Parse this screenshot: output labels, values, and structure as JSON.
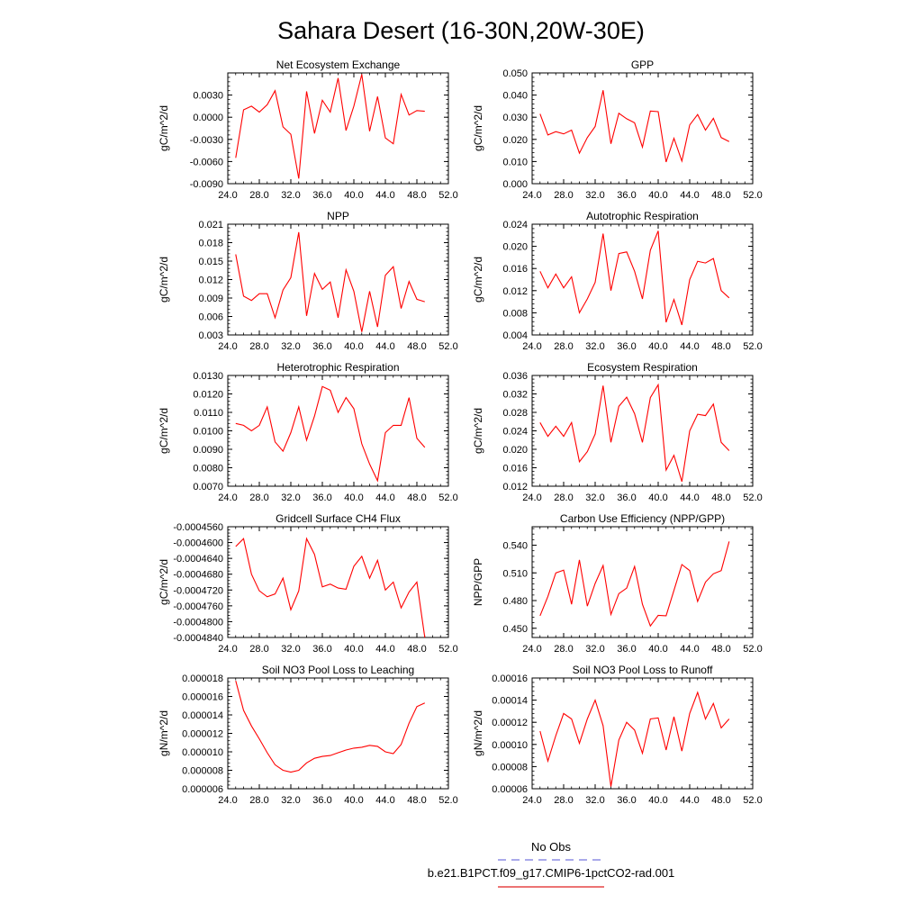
{
  "figure": {
    "title": "Sahara Desert (16-30N,20W-30E)",
    "legend": {
      "entries": [
        {
          "label": "No Obs",
          "color": "#7777dd",
          "dash": true
        },
        {
          "label": "b.e21.B1PCT.f09_g17.CMIP6-1pctCO2-rad.001",
          "color": "#e02020",
          "dash": false
        }
      ]
    }
  },
  "colors": {
    "series": "#ff0000"
  },
  "chart_data": [
    {
      "type": "line",
      "title": "Net Ecosystem Exchange",
      "ylabel": "gC/m^2/d",
      "xlim": [
        24,
        52
      ],
      "ylim": [
        -0.009,
        0.006
      ],
      "xticks": [
        "24.0",
        "28.0",
        "32.0",
        "36.0",
        "40.0",
        "44.0",
        "48.0",
        "52.0"
      ],
      "yticks": [
        "-0.0090",
        "-0.0060",
        "-0.0030",
        "0.0000",
        "0.0030"
      ],
      "yminor": 0.0006,
      "x": [
        25,
        26,
        27,
        28,
        29,
        30,
        31,
        32,
        33,
        34,
        35,
        36,
        37,
        38,
        39,
        40,
        41,
        42,
        43,
        44,
        45,
        46,
        47,
        48,
        49
      ],
      "series": [
        {
          "values": [
            -0.0055,
            0.001,
            0.0015,
            0.0007,
            0.0017,
            0.0036,
            -0.0013,
            -0.0023,
            -0.0083,
            0.0035,
            -0.0022,
            0.0023,
            0.0007,
            0.0053,
            -0.0018,
            0.0015,
            0.0058,
            -0.0019,
            0.0028,
            -0.0028,
            -0.0036,
            0.0031,
            0.0003,
            0.0009,
            0.0008
          ]
        }
      ]
    },
    {
      "type": "line",
      "title": "GPP",
      "ylabel": "gC/m^2/d",
      "xlim": [
        24,
        52
      ],
      "ylim": [
        0,
        0.05
      ],
      "xticks": [
        "24.0",
        "28.0",
        "32.0",
        "36.0",
        "40.0",
        "44.0",
        "48.0",
        "52.0"
      ],
      "yticks": [
        "0.000",
        "0.010",
        "0.020",
        "0.030",
        "0.040",
        "0.050"
      ],
      "yminor": 0.002,
      "x": [
        25,
        26,
        27,
        28,
        29,
        30,
        31,
        32,
        33,
        34,
        35,
        36,
        37,
        38,
        39,
        40,
        41,
        42,
        43,
        44,
        45,
        46,
        47,
        48,
        49
      ],
      "series": [
        {
          "values": [
            0.0315,
            0.022,
            0.0235,
            0.0225,
            0.0242,
            0.0138,
            0.0208,
            0.0258,
            0.0422,
            0.018,
            0.0318,
            0.0293,
            0.0275,
            0.0165,
            0.0328,
            0.0325,
            0.0098,
            0.0205,
            0.0102,
            0.0265,
            0.0312,
            0.0242,
            0.0295,
            0.0208,
            0.019
          ]
        }
      ]
    },
    {
      "type": "line",
      "title": "NPP",
      "ylabel": "gC/m^2/d",
      "xlim": [
        24,
        52
      ],
      "ylim": [
        0.003,
        0.021
      ],
      "xticks": [
        "24.0",
        "28.0",
        "32.0",
        "36.0",
        "40.0",
        "44.0",
        "48.0",
        "52.0"
      ],
      "yticks": [
        "0.003",
        "0.006",
        "0.009",
        "0.012",
        "0.015",
        "0.018",
        "0.021"
      ],
      "yminor": 0.0006,
      "x": [
        25,
        26,
        27,
        28,
        29,
        30,
        31,
        32,
        33,
        34,
        35,
        36,
        37,
        38,
        39,
        40,
        41,
        42,
        43,
        44,
        45,
        46,
        47,
        48,
        49
      ],
      "series": [
        {
          "values": [
            0.0161,
            0.0093,
            0.0086,
            0.0097,
            0.0097,
            0.0058,
            0.0103,
            0.0123,
            0.0197,
            0.0061,
            0.013,
            0.0104,
            0.0116,
            0.0058,
            0.0136,
            0.0101,
            0.0035,
            0.0101,
            0.0043,
            0.0127,
            0.0141,
            0.0073,
            0.0117,
            0.0088,
            0.0084
          ]
        }
      ]
    },
    {
      "type": "line",
      "title": "Autotrophic Respiration",
      "ylabel": "gC/m^2/d",
      "xlim": [
        24,
        52
      ],
      "ylim": [
        0.004,
        0.024
      ],
      "xticks": [
        "24.0",
        "28.0",
        "32.0",
        "36.0",
        "40.0",
        "44.0",
        "48.0",
        "52.0"
      ],
      "yticks": [
        "0.004",
        "0.008",
        "0.012",
        "0.016",
        "0.020",
        "0.024"
      ],
      "yminor": 0.0008,
      "x": [
        25,
        26,
        27,
        28,
        29,
        30,
        31,
        32,
        33,
        34,
        35,
        36,
        37,
        38,
        39,
        40,
        41,
        42,
        43,
        44,
        45,
        46,
        47,
        48,
        49
      ],
      "series": [
        {
          "values": [
            0.0155,
            0.0125,
            0.015,
            0.0125,
            0.0145,
            0.008,
            0.0105,
            0.0135,
            0.0223,
            0.012,
            0.0187,
            0.019,
            0.0155,
            0.0105,
            0.0193,
            0.0228,
            0.0063,
            0.0104,
            0.0058,
            0.014,
            0.0173,
            0.017,
            0.0178,
            0.012,
            0.0107
          ]
        }
      ]
    },
    {
      "type": "line",
      "title": "Heterotrophic Respiration",
      "ylabel": "gC/m^2/d",
      "xlim": [
        24,
        52
      ],
      "ylim": [
        0.007,
        0.013
      ],
      "xticks": [
        "24.0",
        "28.0",
        "32.0",
        "36.0",
        "40.0",
        "44.0",
        "48.0",
        "52.0"
      ],
      "yticks": [
        "0.0070",
        "0.0080",
        "0.0090",
        "0.0100",
        "0.0110",
        "0.0120",
        "0.0130"
      ],
      "yminor": 0.0002,
      "x": [
        25,
        26,
        27,
        28,
        29,
        30,
        31,
        32,
        33,
        34,
        35,
        36,
        37,
        38,
        39,
        40,
        41,
        42,
        43,
        44,
        45,
        46,
        47,
        48,
        49
      ],
      "series": [
        {
          "values": [
            0.0104,
            0.0103,
            0.01,
            0.0103,
            0.0113,
            0.0094,
            0.0089,
            0.0099,
            0.0113,
            0.0095,
            0.0108,
            0.0124,
            0.0122,
            0.011,
            0.0118,
            0.0112,
            0.0093,
            0.0082,
            0.0073,
            0.0099,
            0.0103,
            0.0103,
            0.0118,
            0.0096,
            0.0091
          ]
        }
      ]
    },
    {
      "type": "line",
      "title": "Ecosystem Respiration",
      "ylabel": "gC/m^2/d",
      "xlim": [
        24,
        52
      ],
      "ylim": [
        0.012,
        0.036
      ],
      "xticks": [
        "24.0",
        "28.0",
        "32.0",
        "36.0",
        "40.0",
        "44.0",
        "48.0",
        "52.0"
      ],
      "yticks": [
        "0.012",
        "0.016",
        "0.020",
        "0.024",
        "0.028",
        "0.032",
        "0.036"
      ],
      "yminor": 0.0008,
      "x": [
        25,
        26,
        27,
        28,
        29,
        30,
        31,
        32,
        33,
        34,
        35,
        36,
        37,
        38,
        39,
        40,
        41,
        42,
        43,
        44,
        45,
        46,
        47,
        48,
        49
      ],
      "series": [
        {
          "values": [
            0.0258,
            0.0228,
            0.025,
            0.0228,
            0.0258,
            0.0173,
            0.0195,
            0.0233,
            0.0338,
            0.0215,
            0.0293,
            0.0313,
            0.0277,
            0.0215,
            0.0312,
            0.034,
            0.0155,
            0.0187,
            0.013,
            0.024,
            0.0276,
            0.0273,
            0.0298,
            0.0215,
            0.0197
          ]
        }
      ]
    },
    {
      "type": "line",
      "title": "Gridcell Surface CH4 Flux",
      "ylabel": "gC/m^2/d",
      "xlim": [
        24,
        52
      ],
      "ylim": [
        -0.000484,
        -0.000456
      ],
      "xticks": [
        "24.0",
        "28.0",
        "32.0",
        "36.0",
        "40.0",
        "44.0",
        "48.0",
        "52.0"
      ],
      "yticks": [
        "-0.0004840",
        "-0.0004800",
        "-0.0004760",
        "-0.0004720",
        "-0.0004680",
        "-0.0004640",
        "-0.0004600",
        "-0.0004560"
      ],
      "yminor": 8e-07,
      "x": [
        25,
        26,
        27,
        28,
        29,
        30,
        31,
        32,
        33,
        34,
        35,
        36,
        37,
        38,
        39,
        40,
        41,
        42,
        43,
        44,
        45,
        46,
        47,
        48,
        49
      ],
      "series": [
        {
          "values": [
            -0.000461,
            -0.000459,
            -0.000468,
            -0.0004722,
            -0.0004737,
            -0.000473,
            -0.000469,
            -0.000477,
            -0.0004722,
            -0.000459,
            -0.000463,
            -0.0004712,
            -0.0004705,
            -0.0004715,
            -0.0004718,
            -0.000466,
            -0.0004635,
            -0.000469,
            -0.0004645,
            -0.000472,
            -0.00047,
            -0.0004765,
            -0.0004725,
            -0.00047,
            -0.0004845
          ]
        }
      ]
    },
    {
      "type": "line",
      "title": "Carbon Use Efficiency (NPP/GPP)",
      "ylabel": "NPP/GPP",
      "xlim": [
        24,
        52
      ],
      "ylim": [
        0.44,
        0.56
      ],
      "xticks": [
        "24.0",
        "28.0",
        "32.0",
        "36.0",
        "40.0",
        "44.0",
        "48.0",
        "52.0"
      ],
      "yticks": [
        "0.450",
        "0.480",
        "0.510",
        "0.540"
      ],
      "yminor": 0.006,
      "x": [
        25,
        26,
        27,
        28,
        29,
        30,
        31,
        32,
        33,
        34,
        35,
        36,
        37,
        38,
        39,
        40,
        41,
        42,
        43,
        44,
        45,
        46,
        47,
        48,
        49
      ],
      "series": [
        {
          "values": [
            0.4635,
            0.4845,
            0.51,
            0.513,
            0.476,
            0.524,
            0.474,
            0.4985,
            0.518,
            0.465,
            0.4875,
            0.4935,
            0.517,
            0.476,
            0.4525,
            0.464,
            0.4635,
            0.491,
            0.519,
            0.5125,
            0.479,
            0.5,
            0.509,
            0.5125,
            0.544
          ]
        }
      ]
    },
    {
      "type": "line",
      "title": "Soil NO3 Pool Loss to Leaching",
      "ylabel": "gN/m^2/d",
      "xlim": [
        24,
        52
      ],
      "ylim": [
        6e-06,
        1.8e-05
      ],
      "xticks": [
        "24.0",
        "28.0",
        "32.0",
        "36.0",
        "40.0",
        "44.0",
        "48.0",
        "52.0"
      ],
      "yticks": [
        "0.000006",
        "0.000008",
        "0.000010",
        "0.000012",
        "0.000014",
        "0.000016",
        "0.000018"
      ],
      "yminor": 4e-07,
      "x": [
        25,
        26,
        27,
        28,
        29,
        30,
        31,
        32,
        33,
        34,
        35,
        36,
        37,
        38,
        39,
        40,
        41,
        42,
        43,
        44,
        45,
        46,
        47,
        48,
        49
      ],
      "series": [
        {
          "values": [
            1.77e-05,
            1.45e-05,
            1.28e-05,
            1.14e-05,
            9.9e-06,
            8.6e-06,
            8e-06,
            7.8e-06,
            8e-06,
            8.8e-06,
            9.3e-06,
            9.5e-06,
            9.6e-06,
            9.9e-06,
            1.02e-05,
            1.04e-05,
            1.05e-05,
            1.07e-05,
            1.06e-05,
            1e-05,
            9.8e-06,
            1.08e-05,
            1.31e-05,
            1.49e-05,
            1.53e-05
          ]
        }
      ]
    },
    {
      "type": "line",
      "title": "Soil NO3 Pool Loss to Runoff",
      "ylabel": "gN/m^2/d",
      "xlim": [
        24,
        52
      ],
      "ylim": [
        6e-05,
        0.00016
      ],
      "xticks": [
        "24.0",
        "28.0",
        "32.0",
        "36.0",
        "40.0",
        "44.0",
        "48.0",
        "52.0"
      ],
      "yticks": [
        "0.00006",
        "0.00008",
        "0.00010",
        "0.00012",
        "0.00014",
        "0.00016"
      ],
      "yminor": 4e-06,
      "x": [
        25,
        26,
        27,
        28,
        29,
        30,
        31,
        32,
        33,
        34,
        35,
        36,
        37,
        38,
        39,
        40,
        41,
        42,
        43,
        44,
        45,
        46,
        47,
        48,
        49
      ],
      "series": [
        {
          "values": [
            0.000112,
            8.5e-05,
            0.000108,
            0.000128,
            0.000123,
            0.000101,
            0.000123,
            0.00014,
            0.000117,
            6.2e-05,
            0.000104,
            0.00012,
            0.000113,
            9.2e-05,
            0.000123,
            0.000124,
            9.5e-05,
            0.000125,
            9.4e-05,
            0.000128,
            0.000147,
            0.000123,
            0.000137,
            0.000115,
            0.000123
          ]
        }
      ]
    }
  ]
}
